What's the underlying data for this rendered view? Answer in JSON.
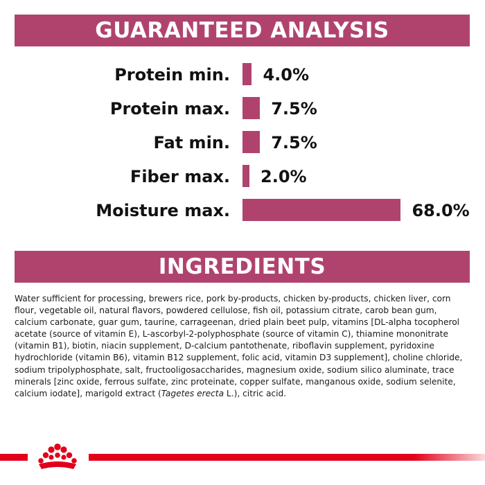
{
  "analysis": {
    "title": "GUARANTEED ANALYSIS",
    "rows": [
      {
        "label": "Protein min.",
        "value": "4.0%",
        "percent": 4.0
      },
      {
        "label": "Protein max.",
        "value": "7.5%",
        "percent": 7.5
      },
      {
        "label": "Fat min.",
        "value": "7.5%",
        "percent": 7.5
      },
      {
        "label": "Fiber max.",
        "value": "2.0%",
        "percent": 2.0
      },
      {
        "label": "Moisture max.",
        "value": "68.0%",
        "percent": 68.0
      }
    ]
  },
  "ingredients": {
    "title": "INGREDIENTS",
    "text_before_italic": "Water sufficient for processing, brewers rice, pork by-products, chicken by-products, chicken liver, corn flour, vegetable oil, natural flavors, powdered cellulose, fish oil, potassium citrate, carob bean gum, calcium carbonate, guar gum, taurine, carrageenan, dried plain beet pulp, vitamins [DL-alpha tocopherol acetate (source of vitamin E), L-ascorbyl-2-polyphosphate (source of vitamin C), thiamine mononitrate (vitamin B1), biotin, niacin supplement, D-calcium pantothenate, riboflavin supplement, pyridoxine hydrochloride (vitamin B6), vitamin B12 supplement, folic acid, vitamin D3 supplement], choline chloride, sodium tripolyphosphate, salt, fructooligosaccharides, magnesium oxide, sodium silico aluminate, trace minerals [zinc oxide, ferrous sulfate, zinc proteinate, copper sulfate, manganous oxide, sodium selenite, calcium iodate], marigold extract (",
    "text_italic": "Tagetes erecta",
    "text_after_italic": " L.), citric acid."
  },
  "colors": {
    "banner": "#b0436e",
    "bar": "#b0436e",
    "footer_line": "#e2001a",
    "logo": "#e2001a"
  },
  "footer": {
    "logo_icon": "crown-icon"
  }
}
